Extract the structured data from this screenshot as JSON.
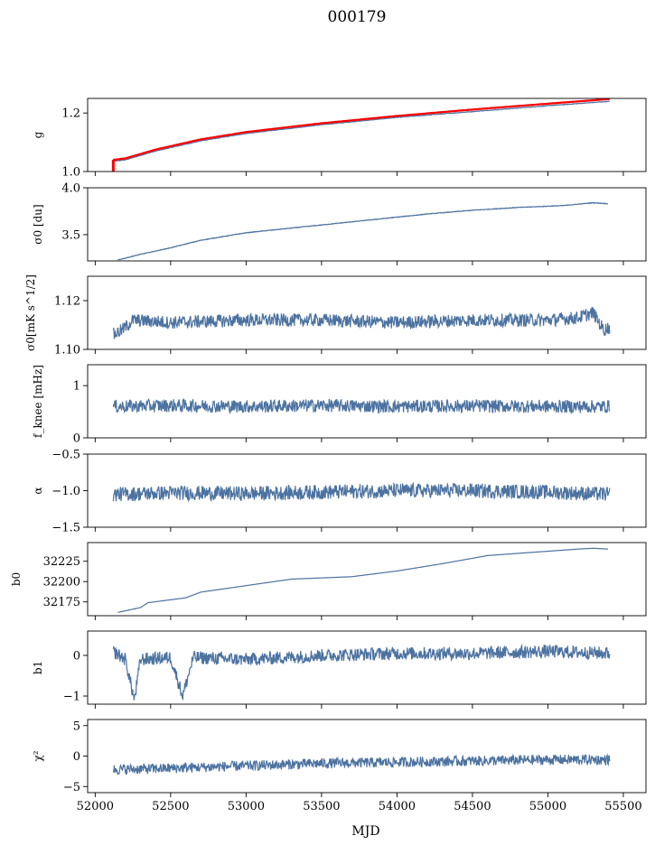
{
  "figure": {
    "title": "000179",
    "xlabel": "MJD"
  },
  "chart_data": {
    "type": "line",
    "title": "000179",
    "xlabel": "MJD",
    "xlim": [
      51950,
      55650
    ],
    "xticks": [
      52000,
      52500,
      53000,
      53500,
      54000,
      54500,
      55000,
      55500
    ],
    "x_range_data": [
      52120,
      55410
    ],
    "line_color": "#4c72a0",
    "fit_color": "#ff0000",
    "grid": false,
    "panels": [
      {
        "ylabel": "g",
        "ylim": [
          1.0,
          1.25
        ],
        "yticks": [
          1.0,
          1.2
        ],
        "yticklabels": [
          "1.0",
          "1.2"
        ],
        "series": [
          {
            "x": [
              52120,
              52200,
              52400,
              52700,
              53000,
              53500,
              54000,
              54500,
              55000,
              55410
            ],
            "y": [
              1.035,
              1.04,
              1.07,
              1.105,
              1.13,
              1.16,
              1.185,
              1.205,
              1.225,
              1.24
            ]
          },
          {
            "x": [
              52120,
              52200,
              52400,
              52700,
              53000,
              53500,
              54000,
              54500,
              55000,
              55410
            ],
            "y": [
              1.04,
              1.045,
              1.075,
              1.11,
              1.135,
              1.165,
              1.19,
              1.212,
              1.232,
              1.248
            ],
            "color": "red"
          }
        ]
      },
      {
        "ylabel": "σ0 [du]",
        "ylim": [
          3.22,
          4.0
        ],
        "yticks": [
          3.5,
          4.0
        ],
        "yticklabels": [
          "3.5",
          "4.0"
        ],
        "series": [
          {
            "x": [
              52150,
              52300,
              52500,
              52700,
              53000,
              53300,
              53600,
              53900,
              54200,
              54500,
              54800,
              55100,
              55300,
              55400
            ],
            "y": [
              3.23,
              3.29,
              3.36,
              3.44,
              3.52,
              3.57,
              3.62,
              3.67,
              3.72,
              3.76,
              3.79,
              3.81,
              3.84,
              3.83
            ]
          }
        ]
      },
      {
        "ylabel": "σ0[mK s^1/2]",
        "ylim": [
          1.1,
          1.13
        ],
        "yticks": [
          1.1,
          1.12
        ],
        "yticklabels": [
          "1.10",
          "1.12"
        ],
        "series": [
          {
            "x": [
              52120,
              52180,
              52250,
              52500,
              53000,
              53500,
              54000,
              54500,
              55000,
              55200,
              55300,
              55370,
              55410
            ],
            "y": [
              1.106,
              1.108,
              1.112,
              1.111,
              1.112,
              1.112,
              1.111,
              1.112,
              1.112,
              1.113,
              1.115,
              1.108,
              1.109
            ]
          }
        ]
      },
      {
        "ylabel": "f_knee [mHz]",
        "ylim": [
          0,
          1.4
        ],
        "yticks": [
          0,
          1
        ],
        "yticklabels": [
          "0",
          "1"
        ],
        "series": [
          {
            "x": [
              52120,
              52500,
              53000,
              53500,
              54000,
              54500,
              55000,
              55410
            ],
            "y": [
              0.6,
              0.62,
              0.6,
              0.62,
              0.6,
              0.61,
              0.6,
              0.6
            ]
          }
        ]
      },
      {
        "ylabel": "α",
        "ylim": [
          -1.5,
          -0.5
        ],
        "yticks": [
          -1.5,
          -1.0,
          -0.5
        ],
        "yticklabels": [
          "−1.5",
          "−1.0",
          "−0.5"
        ],
        "series": [
          {
            "x": [
              52120,
              52500,
              53000,
              53500,
              54000,
              54500,
              55000,
              55410
            ],
            "y": [
              -1.05,
              -1.03,
              -1.04,
              -1.02,
              -1.0,
              -1.0,
              -1.02,
              -1.05
            ]
          }
        ]
      },
      {
        "ylabel": "b0",
        "ylim": [
          32158,
          32248
        ],
        "yticks": [
          32175,
          32200,
          32225
        ],
        "yticklabels": [
          "32175",
          "32200",
          "32225"
        ],
        "series": [
          {
            "x": [
              52150,
              52300,
              52350,
              52600,
              52700,
              53000,
              53300,
              53700,
              54000,
              54300,
              54600,
              54900,
              55200,
              55300,
              55400
            ],
            "y": [
              32162,
              32168,
              32174,
              32180,
              32187,
              32195,
              32203,
              32206,
              32213,
              32222,
              32232,
              32236,
              32240,
              32241,
              32240
            ]
          }
        ]
      },
      {
        "ylabel": "b1",
        "ylim": [
          -1.2,
          0.6
        ],
        "yticks": [
          -1,
          0
        ],
        "yticklabels": [
          "−1",
          "0"
        ],
        "series": [
          {
            "x": [
              52120,
              52200,
              52260,
              52300,
              52500,
              52580,
              52650,
              53000,
              53500,
              54000,
              54500,
              55000,
              55410
            ],
            "y": [
              0.1,
              -0.1,
              -1.1,
              -0.1,
              -0.05,
              -1.0,
              -0.05,
              -0.1,
              0.0,
              0.05,
              0.05,
              0.1,
              0.05
            ]
          }
        ]
      },
      {
        "ylabel": "χ²",
        "ylim": [
          -6,
          6
        ],
        "yticks": [
          -5,
          0,
          5
        ],
        "yticklabels": [
          "−5",
          "0",
          "5"
        ],
        "series": [
          {
            "x": [
              52120,
              52500,
              53000,
              53500,
              54000,
              54500,
              55000,
              55410
            ],
            "y": [
              -2.2,
              -2.0,
              -1.6,
              -1.2,
              -1.0,
              -0.8,
              -0.6,
              -0.6
            ]
          }
        ]
      }
    ]
  }
}
